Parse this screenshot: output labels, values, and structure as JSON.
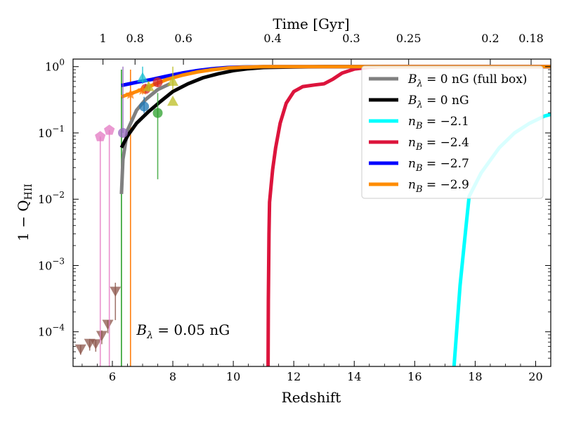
{
  "chart_data": {
    "type": "line",
    "ylabel": "1 − Q",
    "ylabel_sub": "HII",
    "xlabel": "Redshift",
    "top_xlabel": "Time [Gyr]",
    "xlim": [
      4.7,
      20.5
    ],
    "ylim": [
      3e-05,
      1.3
    ],
    "y_scale": "log",
    "xticks": [
      6,
      8,
      10,
      12,
      14,
      16,
      18,
      20
    ],
    "yticks": [
      {
        "value": 0.0001,
        "base": "10",
        "exp": "−4"
      },
      {
        "value": 0.001,
        "base": "10",
        "exp": "−3"
      },
      {
        "value": 0.01,
        "base": "10",
        "exp": "−2"
      },
      {
        "value": 0.1,
        "base": "10",
        "exp": "−1"
      },
      {
        "value": 1,
        "base": "10",
        "exp": "0"
      }
    ],
    "top_ticks": [
      {
        "label": "1",
        "z": 5.69
      },
      {
        "label": "0.8",
        "z": 6.75
      },
      {
        "label": "0.6",
        "z": 8.35
      },
      {
        "label": "0.4",
        "z": 11.3
      },
      {
        "label": "0.3",
        "z": 13.9
      },
      {
        "label": "0.25",
        "z": 15.8
      },
      {
        "label": "0.2",
        "z": 18.5
      },
      {
        "label": "0.18",
        "z": 19.85
      }
    ],
    "annotation": {
      "text": "B",
      "sub": "λ",
      "rest": " = 0.05 nG",
      "x": 6.8,
      "y": 0.00011
    },
    "series": [
      {
        "name": "B",
        "sub": "λ",
        "label_rest": " = 0 nG (full box)",
        "color": "#808080",
        "x": [
          6.3,
          6.35,
          6.5,
          6.8,
          7.1,
          7.5,
          7.9
        ],
        "y": [
          0.012,
          0.04,
          0.11,
          0.22,
          0.32,
          0.45,
          0.55
        ]
      },
      {
        "name": "B",
        "sub": "λ",
        "label_rest": " = 0 nG",
        "color": "#000000",
        "x": [
          6.3,
          6.5,
          6.8,
          7.2,
          7.6,
          8.0,
          8.5,
          9.0,
          9.5,
          10.0,
          10.5,
          11.0,
          12.0,
          13.0,
          14.0,
          20.5
        ],
        "y": [
          0.06,
          0.09,
          0.14,
          0.21,
          0.3,
          0.42,
          0.55,
          0.68,
          0.78,
          0.87,
          0.93,
          0.97,
          0.99,
          1.0,
          1.0,
          1.0
        ]
      },
      {
        "name": "n",
        "sub": "B",
        "label_rest": " = −2.1",
        "color": "#00ffff",
        "x": [
          17.3,
          17.5,
          17.7,
          17.8,
          18.2,
          18.8,
          19.3,
          19.8,
          20.3,
          20.5
        ],
        "y": [
          3e-05,
          0.0005,
          0.004,
          0.011,
          0.025,
          0.06,
          0.1,
          0.14,
          0.18,
          0.19
        ]
      },
      {
        "name": "n",
        "sub": "B",
        "label_rest": " = −2.4",
        "color": "#dc143c",
        "x": [
          11.15,
          11.16,
          11.18,
          11.2,
          11.25,
          11.3,
          11.4,
          11.55,
          11.75,
          12.0,
          12.3,
          12.7,
          13.0,
          13.3,
          13.6,
          14.0,
          14.5,
          15.0,
          16.0,
          18.0,
          20.5
        ],
        "y": [
          3e-05,
          0.0003,
          0.003,
          0.009,
          0.016,
          0.028,
          0.06,
          0.14,
          0.28,
          0.42,
          0.5,
          0.53,
          0.55,
          0.65,
          0.8,
          0.92,
          0.98,
          1.0,
          1.0,
          1.0,
          1.0
        ]
      },
      {
        "name": "n",
        "sub": "B",
        "label_rest": " = −2.7",
        "color": "#0000ff",
        "x": [
          6.3,
          6.8,
          7.3,
          7.8,
          8.3,
          8.8,
          9.3,
          9.8,
          10.3,
          11.0,
          12.0,
          14.0,
          20.5
        ],
        "y": [
          0.52,
          0.58,
          0.64,
          0.72,
          0.8,
          0.87,
          0.93,
          0.97,
          0.99,
          1.0,
          1.0,
          1.0,
          1.0
        ]
      },
      {
        "name": "n",
        "sub": "B",
        "label_rest": " = −2.9",
        "color": "#ff8c00",
        "x": [
          6.3,
          6.8,
          7.3,
          7.8,
          8.3,
          8.8,
          9.3,
          9.8,
          10.3,
          11.0,
          12.0,
          14.0,
          20.5
        ],
        "y": [
          0.35,
          0.42,
          0.52,
          0.64,
          0.74,
          0.83,
          0.9,
          0.95,
          0.98,
          1.0,
          1.0,
          1.0,
          1.0
        ]
      }
    ],
    "observations": [
      {
        "color": "#8c564b",
        "marker": "triangle-down",
        "points": [
          {
            "x": 4.95,
            "y": 5.5e-05,
            "ylo": 4.5e-05,
            "yhi": 6.3e-05
          },
          {
            "x": 5.25,
            "y": 6.7e-05,
            "ylo": 5.2e-05,
            "yhi": 7.8e-05
          },
          {
            "x": 5.45,
            "y": 6.6e-05,
            "ylo": 5e-05,
            "yhi": 7.6e-05
          },
          {
            "x": 5.65,
            "y": 8.8e-05,
            "ylo": 6.5e-05,
            "yhi": 0.000105
          },
          {
            "x": 5.85,
            "y": 0.00013,
            "ylo": 9.5e-05,
            "yhi": 0.00015
          },
          {
            "x": 6.1,
            "y": 0.00041,
            "ylo": 0.00015,
            "yhi": 0.00055
          }
        ]
      },
      {
        "color": "#e377c2",
        "marker": "pentagon",
        "points": [
          {
            "x": 5.6,
            "y": 0.088,
            "ylo": 3e-05,
            "yhi": 0.088
          },
          {
            "x": 5.9,
            "y": 0.11,
            "ylo": 3e-05,
            "yhi": 0.11
          }
        ]
      },
      {
        "color": "#9467bd",
        "marker": "circle",
        "points": [
          {
            "x": 6.35,
            "y": 0.1,
            "ylo": 0.1,
            "yhi": 1.0
          }
        ]
      },
      {
        "color": "#2ca02c",
        "marker": "circle",
        "points": [
          {
            "x": 7.5,
            "y": 0.2,
            "ylo": 0.02,
            "yhi": 0.4
          }
        ]
      },
      {
        "color": "#1f77b4",
        "marker": "circle",
        "points": [
          {
            "x": 7.05,
            "y": 0.25,
            "ylo": 0.2,
            "yhi": 0.35
          }
        ]
      },
      {
        "color": "#d62728",
        "marker": "circle",
        "points": [
          {
            "x": 7.1,
            "y": 0.46,
            "ylo": 0.4,
            "yhi": 0.55
          },
          {
            "x": 7.5,
            "y": 0.58,
            "ylo": 0.5,
            "yhi": 0.66
          }
        ]
      },
      {
        "color": "#ff7f0e",
        "marker": "star",
        "points": [
          {
            "x": 6.6,
            "y": 0.38,
            "ylo": 0.32,
            "yhi": 0.44
          },
          {
            "x": 7.0,
            "y": 0.44,
            "ylo": 0.38,
            "yhi": 0.5
          }
        ]
      },
      {
        "color": "#bcbd22",
        "marker": "triangle-up",
        "points": [
          {
            "x": 8.0,
            "y": 0.3,
            "ylo": 0.3,
            "yhi": 0.3
          },
          {
            "x": 8.0,
            "y": 0.6,
            "ylo": 0.45,
            "yhi": 1.0
          },
          {
            "x": 7.2,
            "y": 0.5,
            "ylo": 0.42,
            "yhi": 0.6
          }
        ]
      },
      {
        "color": "#17becf",
        "marker": "triangle-up",
        "points": [
          {
            "x": 7.0,
            "y": 0.68,
            "ylo": 0.55,
            "yhi": 1.0
          }
        ]
      }
    ],
    "vlines": [
      {
        "x": 6.3,
        "color": "#2ca02c"
      },
      {
        "x": 6.6,
        "color": "#ff7f0e"
      }
    ]
  }
}
